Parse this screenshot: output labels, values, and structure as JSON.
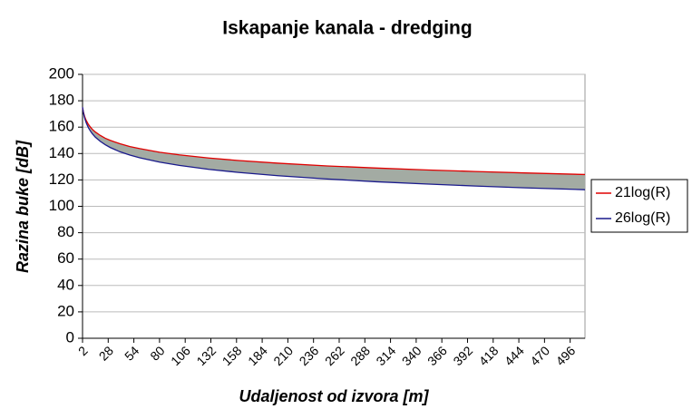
{
  "chart_data": {
    "type": "line",
    "title": "Iskapanje kanala - dredging",
    "x_label": "Udaljenost od izvora  [m]",
    "y_label": "Razina buke [dB]",
    "x": [
      2,
      3,
      4,
      5,
      6,
      8,
      10,
      12,
      15,
      20,
      25,
      30,
      40,
      50,
      60,
      80,
      100,
      130,
      160,
      200,
      250,
      300,
      350,
      400,
      450,
      511
    ],
    "series": [
      {
        "name": "21log(R)",
        "color": "#e00000",
        "values": [
          174.7,
          171.0,
          168.4,
          166.3,
          164.7,
          162.0,
          160.0,
          158.3,
          156.3,
          153.7,
          151.6,
          150.0,
          147.4,
          145.3,
          143.7,
          141.0,
          139.0,
          136.6,
          134.7,
          132.7,
          130.6,
          129.0,
          127.6,
          126.4,
          125.3,
          124.1
        ]
      },
      {
        "name": "26log(R)",
        "color": "#1a1a8c",
        "values": [
          175.2,
          170.6,
          167.3,
          164.8,
          162.8,
          159.5,
          157.0,
          154.9,
          152.4,
          149.2,
          146.7,
          144.6,
          141.3,
          138.8,
          136.8,
          133.5,
          131.0,
          128.0,
          125.7,
          123.2,
          120.7,
          118.6,
          116.9,
          115.4,
          114.0,
          112.6
        ]
      }
    ],
    "fill_between_color": "#a3aba3",
    "xlim": [
      2,
      511
    ],
    "xticks": [
      2,
      28,
      54,
      80,
      106,
      132,
      158,
      184,
      210,
      236,
      262,
      288,
      314,
      340,
      366,
      392,
      418,
      444,
      470,
      496
    ],
    "ylim": [
      0,
      200
    ],
    "yticks": [
      0,
      20,
      40,
      60,
      80,
      100,
      120,
      140,
      160,
      180,
      200
    ],
    "grid": true,
    "legend": "right"
  }
}
